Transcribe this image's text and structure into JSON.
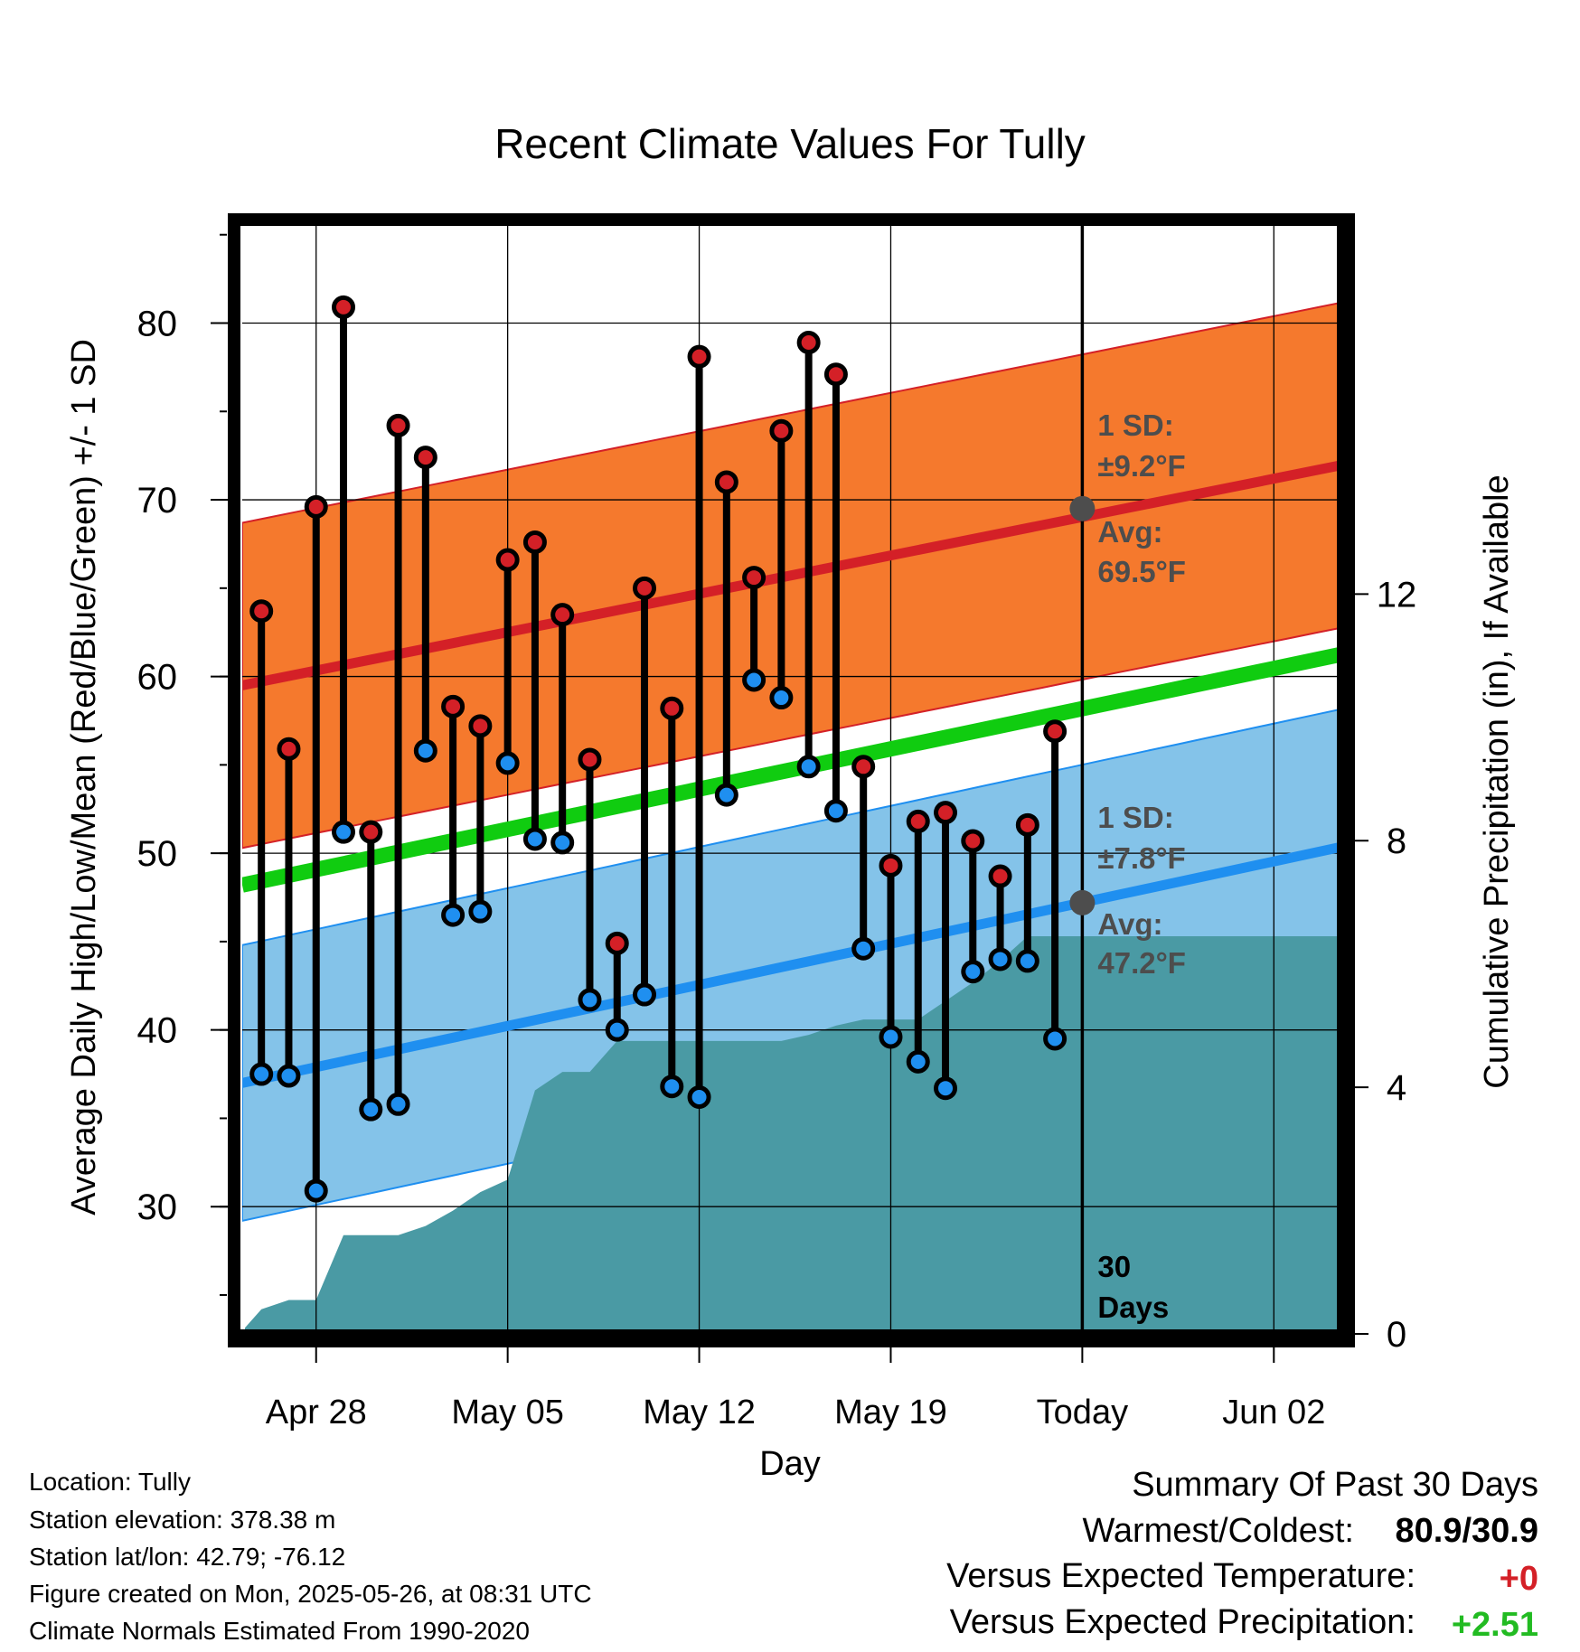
{
  "chart_data": {
    "type": "line",
    "title": "Recent Climate Values For Tully",
    "xlabel": "Day",
    "ylabel": "Average Daily High/Low/Mean (Red/Blue/Green) +/- 1 SD",
    "y2label": "Cumulative Precipitation (in), If Available",
    "ylim": [
      22.8,
      85.6
    ],
    "y2lim": [
      0,
      18
    ],
    "y_ticks": [
      "30",
      "40",
      "50",
      "60",
      "70",
      "80"
    ],
    "y2_ticks": [
      "0",
      "4",
      "8",
      "12"
    ],
    "x_ticks": [
      {
        "day": 0,
        "label": "Apr 28"
      },
      {
        "day": 7,
        "label": "May 05"
      },
      {
        "day": 14,
        "label": "May 12"
      },
      {
        "day": 21,
        "label": "May 19"
      },
      {
        "day": 28,
        "label": "Today"
      },
      {
        "day": 35,
        "label": "Jun 02"
      }
    ],
    "xlim": [
      -2.7,
      37.6
    ],
    "today_day": 28,
    "grid": true,
    "colors": {
      "high": "#d42027",
      "low": "#1f8ff0",
      "mean": "#10cc10",
      "high_band": "#f5792d",
      "low_band": "#84c3e9",
      "precip": "#4a9aa4",
      "avg_marker": "#4d4d4d",
      "annot_text": "#4d4d4d"
    },
    "normal_high": {
      "start": 59.5,
      "end": 72.0
    },
    "normal_low": {
      "start": 37.0,
      "end": 50.4
    },
    "normal_mean": {
      "start": 48.2,
      "end": 61.3
    },
    "high_sd": 9.2,
    "low_sd": 7.8,
    "daily": [
      {
        "day": -2,
        "high": 63.7,
        "low": 37.5
      },
      {
        "day": -1,
        "high": 55.9,
        "low": 37.4
      },
      {
        "day": 0,
        "high": 69.6,
        "low": 30.9
      },
      {
        "day": 1,
        "high": 80.9,
        "low": 51.2
      },
      {
        "day": 2,
        "high": 51.2,
        "low": 35.5
      },
      {
        "day": 3,
        "high": 74.2,
        "low": 35.8
      },
      {
        "day": 4,
        "high": 72.4,
        "low": 55.8
      },
      {
        "day": 5,
        "high": 58.3,
        "low": 46.5
      },
      {
        "day": 6,
        "high": 57.2,
        "low": 46.7
      },
      {
        "day": 7,
        "high": 66.6,
        "low": 55.1
      },
      {
        "day": 8,
        "high": 67.6,
        "low": 50.8
      },
      {
        "day": 9,
        "high": 63.5,
        "low": 50.6
      },
      {
        "day": 10,
        "high": 55.3,
        "low": 41.7
      },
      {
        "day": 11,
        "high": 44.9,
        "low": 40.0
      },
      {
        "day": 12,
        "high": 65.0,
        "low": 42.0
      },
      {
        "day": 13,
        "high": 58.2,
        "low": 36.8
      },
      {
        "day": 14,
        "high": 78.1,
        "low": 36.2
      },
      {
        "day": 15,
        "high": 71.0,
        "low": 53.3
      },
      {
        "day": 16,
        "high": 65.6,
        "low": 59.8
      },
      {
        "day": 17,
        "high": 73.9,
        "low": 58.8
      },
      {
        "day": 18,
        "high": 78.9,
        "low": 54.9
      },
      {
        "day": 19,
        "high": 77.1,
        "low": 52.4
      },
      {
        "day": 20,
        "high": 54.9,
        "low": 44.6
      },
      {
        "day": 21,
        "high": 49.3,
        "low": 39.6
      },
      {
        "day": 22,
        "high": 51.8,
        "low": 38.2
      },
      {
        "day": 23,
        "high": 52.3,
        "low": 36.7
      },
      {
        "day": 24,
        "high": 50.7,
        "low": 43.3
      },
      {
        "day": 25,
        "high": 48.7,
        "low": 44.0
      },
      {
        "day": 26,
        "high": 51.6,
        "low": 43.9
      },
      {
        "day": 27,
        "high": 56.9,
        "low": 39.5
      }
    ],
    "precip_cumulative": [
      {
        "day": -2.6,
        "value": 0.1
      },
      {
        "day": -2,
        "value": 0.4
      },
      {
        "day": -1,
        "value": 0.55
      },
      {
        "day": 0,
        "value": 0.55
      },
      {
        "day": 1,
        "value": 1.6
      },
      {
        "day": 2,
        "value": 1.6
      },
      {
        "day": 3,
        "value": 1.6
      },
      {
        "day": 4,
        "value": 1.75
      },
      {
        "day": 5,
        "value": 2.0
      },
      {
        "day": 6,
        "value": 2.3
      },
      {
        "day": 7,
        "value": 2.5
      },
      {
        "day": 8,
        "value": 3.95
      },
      {
        "day": 9,
        "value": 4.25
      },
      {
        "day": 10,
        "value": 4.25
      },
      {
        "day": 11,
        "value": 4.75
      },
      {
        "day": 12,
        "value": 4.75
      },
      {
        "day": 13,
        "value": 4.75
      },
      {
        "day": 14,
        "value": 4.75
      },
      {
        "day": 15,
        "value": 4.75
      },
      {
        "day": 16,
        "value": 4.75
      },
      {
        "day": 17,
        "value": 4.75
      },
      {
        "day": 18,
        "value": 4.85
      },
      {
        "day": 19,
        "value": 5.0
      },
      {
        "day": 20,
        "value": 5.1
      },
      {
        "day": 21,
        "value": 5.1
      },
      {
        "day": 22,
        "value": 5.1
      },
      {
        "day": 23,
        "value": 5.4
      },
      {
        "day": 24,
        "value": 5.7
      },
      {
        "day": 25,
        "value": 6.05
      },
      {
        "day": 26,
        "value": 6.45
      },
      {
        "day": 27,
        "value": 6.45
      },
      {
        "day": 28,
        "value": 6.45
      },
      {
        "day": 37.6,
        "value": 6.45
      }
    ],
    "annotations": {
      "high_sd_label": "1 SD:",
      "high_sd_value": "±9.2°F",
      "high_avg_label": "Avg:",
      "high_avg_value": "69.5°F",
      "high_avg": 69.5,
      "low_sd_label": "1 SD:",
      "low_sd_value": "±7.8°F",
      "low_avg_label": "Avg:",
      "low_avg_value": "47.2°F",
      "low_avg": 47.2,
      "days_number": "30",
      "days_word": "Days"
    }
  },
  "info": {
    "location": "Location: Tully",
    "elevation": "Station elevation: 378.38 m",
    "latlon": "Station lat/lon: 42.79; -76.12",
    "created": "Figure created on Mon, 2025-05-26, at 08:31 UTC",
    "normals": "Climate Normals Estimated From 1990-2020"
  },
  "summary": {
    "heading": "Summary Of Past 30 Days",
    "warmest_label": "Warmest/Coldest:",
    "warmest_value": "80.9/30.9",
    "temp_label": "Versus Expected Temperature:",
    "temp_value": "+0",
    "temp_color": "#d42027",
    "precip_label": "Versus Expected Precipitation:",
    "precip_value": "+2.51",
    "precip_color": "#22bb22"
  }
}
